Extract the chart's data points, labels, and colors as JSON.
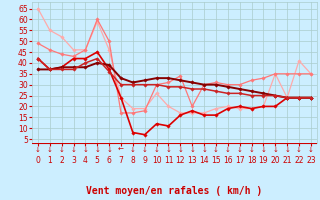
{
  "xlabel": "Vent moyen/en rafales ( km/h )",
  "xlim": [
    -0.5,
    23.5
  ],
  "ylim": [
    3,
    68
  ],
  "yticks": [
    5,
    10,
    15,
    20,
    25,
    30,
    35,
    40,
    45,
    50,
    55,
    60,
    65
  ],
  "xticks": [
    0,
    1,
    2,
    3,
    4,
    5,
    6,
    7,
    8,
    9,
    10,
    11,
    12,
    13,
    14,
    15,
    16,
    17,
    18,
    19,
    20,
    21,
    22,
    23
  ],
  "background_color": "#cceeff",
  "grid_color": "#aacccc",
  "series": [
    {
      "x": [
        0,
        1,
        2,
        3,
        4,
        5,
        6,
        7,
        8,
        9,
        10,
        11,
        12,
        13,
        14,
        15,
        16,
        17,
        18,
        19,
        20,
        21,
        22,
        23
      ],
      "y": [
        65,
        55,
        52,
        46,
        46,
        59,
        46,
        24,
        19,
        19,
        26,
        20,
        17,
        17,
        17,
        19,
        20,
        19,
        19,
        20,
        35,
        24,
        41,
        35
      ],
      "color": "#ffaaaa",
      "lw": 0.9,
      "marker": "D",
      "ms": 1.8
    },
    {
      "x": [
        0,
        1,
        2,
        3,
        4,
        5,
        6,
        7,
        8,
        9,
        10,
        11,
        12,
        13,
        14,
        15,
        16,
        17,
        18,
        19,
        20,
        21,
        22,
        23
      ],
      "y": [
        49,
        46,
        44,
        43,
        46,
        60,
        50,
        17,
        17,
        18,
        30,
        31,
        34,
        20,
        30,
        31,
        30,
        30,
        32,
        33,
        35,
        35,
        35,
        35
      ],
      "color": "#ff7777",
      "lw": 0.9,
      "marker": "D",
      "ms": 1.8
    },
    {
      "x": [
        0,
        1,
        2,
        3,
        4,
        5,
        6,
        7,
        8,
        9,
        10,
        11,
        12,
        13,
        14,
        15,
        16,
        17,
        18,
        19,
        20,
        21,
        22,
        23
      ],
      "y": [
        42,
        37,
        38,
        42,
        42,
        45,
        37,
        24,
        8,
        7,
        12,
        11,
        16,
        18,
        16,
        16,
        19,
        20,
        19,
        20,
        20,
        24,
        24,
        24
      ],
      "color": "#dd0000",
      "lw": 1.2,
      "marker": "D",
      "ms": 1.8
    },
    {
      "x": [
        0,
        1,
        2,
        3,
        4,
        5,
        6,
        7,
        8,
        9,
        10,
        11,
        12,
        13,
        14,
        15,
        16,
        17,
        18,
        19,
        20,
        21,
        22,
        23
      ],
      "y": [
        37,
        37,
        38,
        38,
        38,
        40,
        39,
        33,
        31,
        32,
        33,
        33,
        32,
        31,
        30,
        30,
        29,
        28,
        27,
        26,
        25,
        24,
        24,
        24
      ],
      "color": "#880000",
      "lw": 1.4,
      "marker": "D",
      "ms": 1.8
    },
    {
      "x": [
        0,
        1,
        2,
        3,
        4,
        5,
        6,
        7,
        8,
        9,
        10,
        11,
        12,
        13,
        14,
        15,
        16,
        17,
        18,
        19,
        20,
        21,
        22,
        23
      ],
      "y": [
        42,
        37,
        37,
        37,
        40,
        42,
        36,
        30,
        30,
        30,
        30,
        29,
        29,
        28,
        28,
        27,
        26,
        26,
        25,
        25,
        25,
        24,
        24,
        24
      ],
      "color": "#cc2222",
      "lw": 1.1,
      "marker": "D",
      "ms": 1.8
    }
  ],
  "arrow_symbols": [
    "↓",
    "↓",
    "↓",
    "↓",
    "↓",
    "↓",
    "↓",
    "←",
    "↓",
    "↓",
    "↓",
    "↓",
    "↓",
    "↓",
    "↓",
    "↓",
    "↓",
    "↓",
    "↓",
    "↓",
    "↓",
    "↓",
    "↓",
    "↓"
  ],
  "arrow_color": "#cc0000",
  "xlabel_color": "#cc0000",
  "xlabel_fontsize": 7,
  "tick_fontsize": 5.5,
  "tick_color": "#cc0000"
}
